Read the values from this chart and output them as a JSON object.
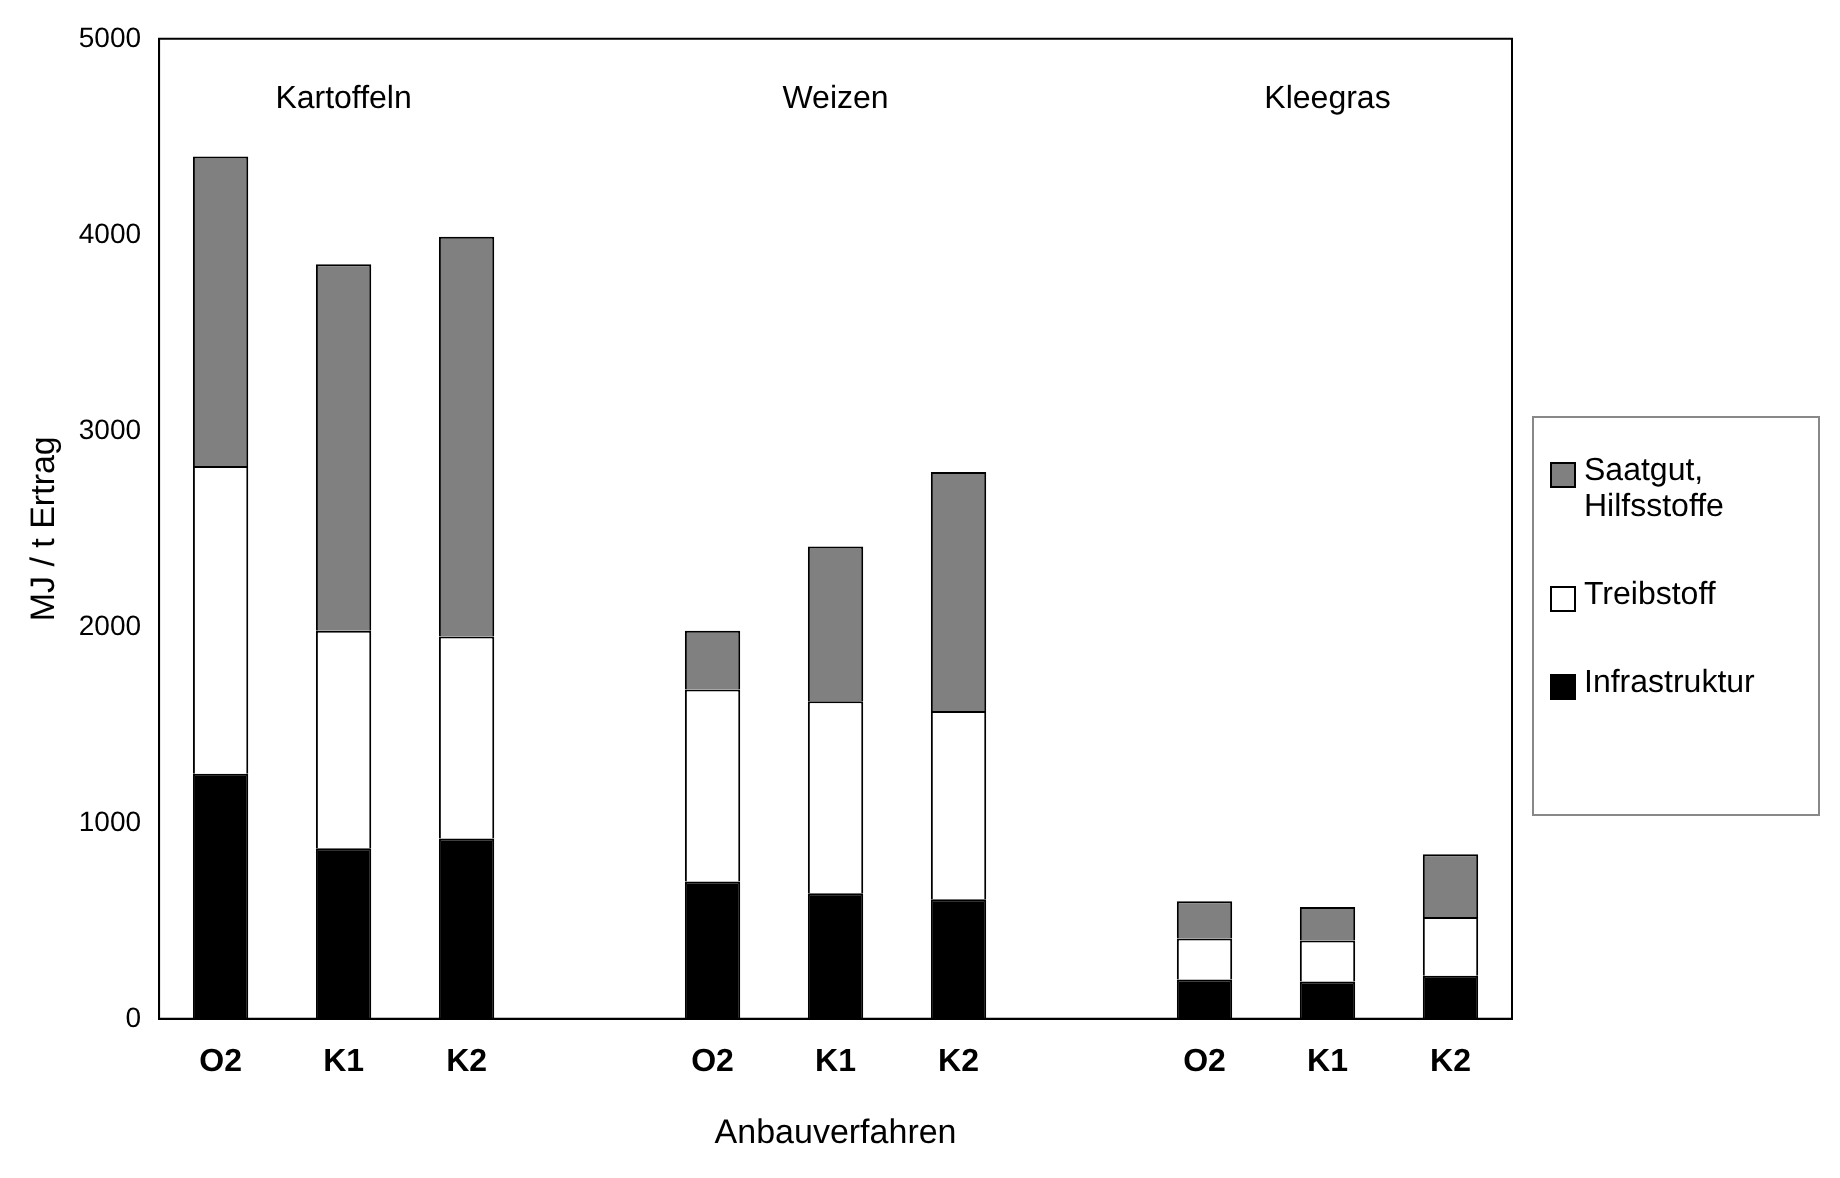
{
  "chart_data": {
    "type": "bar",
    "stacked": true,
    "xlabel": "Anbauverfahren",
    "ylabel": "MJ / t Ertrag",
    "categories": [
      "O2",
      "K1",
      "K2",
      null,
      "O2",
      "K1",
      "K2",
      null,
      "O2",
      "K1",
      "K2"
    ],
    "series": [
      {
        "name": "Infrastruktur",
        "color": "#000000",
        "values": [
          1250,
          870,
          920,
          null,
          700,
          640,
          610,
          null,
          200,
          190,
          220
        ]
      },
      {
        "name": "Treibstoff",
        "color": "#ffffff",
        "values": [
          1570,
          1110,
          1030,
          null,
          980,
          980,
          960,
          null,
          210,
          210,
          300
        ]
      },
      {
        "name": "Saatgut, Hilfsstoffe",
        "color": "#808080",
        "values": [
          1580,
          1870,
          2040,
          null,
          300,
          790,
          1220,
          null,
          190,
          170,
          320
        ]
      }
    ],
    "annotations": [
      "Kartoffeln",
      "Weizen",
      "Kleegras"
    ],
    "ylim": [
      0,
      5000
    ],
    "yticks": [
      0,
      1000,
      2000,
      3000,
      4000,
      5000
    ],
    "grid": false,
    "legend": "right"
  }
}
